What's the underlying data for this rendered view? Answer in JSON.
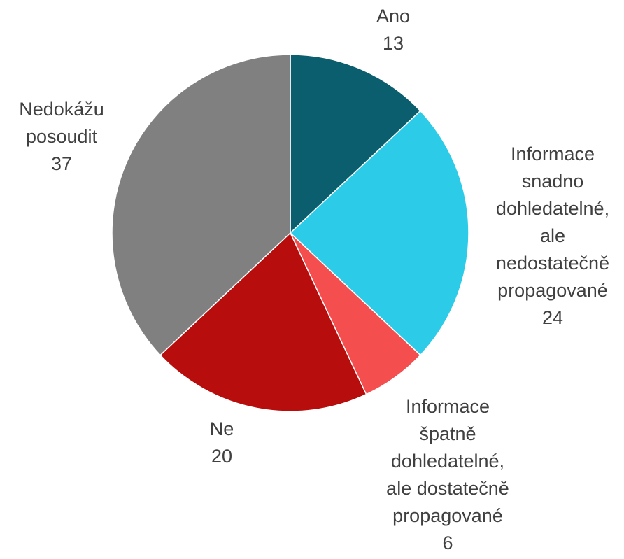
{
  "chart_data": {
    "type": "pie",
    "categories": [
      "Ano",
      "Informace\nsnadno\ndohledatelné,\nale\nnedostatečně\npropagované",
      "Informace\nšpatně\ndohledatelné,\nale dostatečně\npropagované",
      "Ne",
      "Nedokážu\nposoudit"
    ],
    "values": [
      13,
      24,
      6,
      20,
      37
    ],
    "colors": [
      "#0b5e6e",
      "#2ccce8",
      "#f54e4e",
      "#b80d0d",
      "#808080"
    ]
  }
}
